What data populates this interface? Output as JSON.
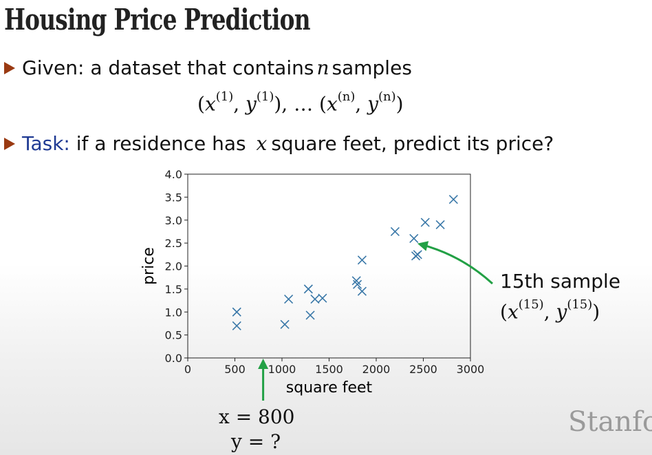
{
  "slide": {
    "title": "Housing Price Prediction",
    "bullet1": {
      "prefix": "Given: a dataset that contains ",
      "var": "n",
      "suffix": " samples"
    },
    "formula": {
      "open": "(",
      "x1": "x",
      "x1_sup": "(1)",
      "sep1": ", ",
      "y1": "y",
      "y1_sup": "(1)",
      "mid": "), … (",
      "xn": "x",
      "xn_sup": "(n)",
      "sep2": ", ",
      "yn": "y",
      "yn_sup": "(n)",
      "close": ")"
    },
    "bullet2": {
      "label": "Task:",
      "prefix": " if a residence has ",
      "var": "x",
      "suffix": " square feet, predict its price?"
    },
    "annotation": {
      "line1": "15th sample",
      "open": "(",
      "x": "x",
      "x_sup": "(15)",
      "sep": ", ",
      "y": "y",
      "y_sup": "(15)",
      "close": ")"
    },
    "query": {
      "x_line": "x = 800",
      "y_line": "y = ?"
    },
    "logo": "Stanfo",
    "colors": {
      "marker": "#3a78a8",
      "arrow": "#22a045",
      "task": "#1f3a93",
      "bullet": "#9a3a12"
    }
  },
  "chart_data": {
    "type": "scatter",
    "xlabel": "square feet",
    "ylabel": "price",
    "xlim": [
      0,
      3000
    ],
    "ylim": [
      0,
      4.0
    ],
    "x_ticks": [
      0,
      500,
      1000,
      1500,
      2000,
      2500,
      3000
    ],
    "y_ticks": [
      0.0,
      0.5,
      1.0,
      1.5,
      2.0,
      2.5,
      3.0,
      3.5,
      4.0
    ],
    "x_tick_labels": [
      "0",
      "500",
      "1000",
      "1500",
      "2000",
      "2500",
      "3000"
    ],
    "y_tick_labels": [
      "0.0",
      "0.5",
      "1.0",
      "1.5",
      "2.0",
      "2.5",
      "3.0",
      "3.5",
      "4.0"
    ],
    "grid": false,
    "marker": "x",
    "points": [
      {
        "x": 520,
        "y": 1.0
      },
      {
        "x": 520,
        "y": 0.7
      },
      {
        "x": 1030,
        "y": 0.73
      },
      {
        "x": 1070,
        "y": 1.28
      },
      {
        "x": 1280,
        "y": 1.5
      },
      {
        "x": 1300,
        "y": 0.93
      },
      {
        "x": 1350,
        "y": 1.28
      },
      {
        "x": 1430,
        "y": 1.3
      },
      {
        "x": 1790,
        "y": 1.68
      },
      {
        "x": 1800,
        "y": 1.6
      },
      {
        "x": 1850,
        "y": 2.13
      },
      {
        "x": 1850,
        "y": 1.45
      },
      {
        "x": 2200,
        "y": 2.75
      },
      {
        "x": 2400,
        "y": 2.6
      },
      {
        "x": 2420,
        "y": 2.22
      },
      {
        "x": 2440,
        "y": 2.25
      },
      {
        "x": 2520,
        "y": 2.95
      },
      {
        "x": 2680,
        "y": 2.9
      },
      {
        "x": 2820,
        "y": 3.45
      }
    ],
    "highlight_point": {
      "x": 2400,
      "y": 2.6
    },
    "query_x": 800
  }
}
